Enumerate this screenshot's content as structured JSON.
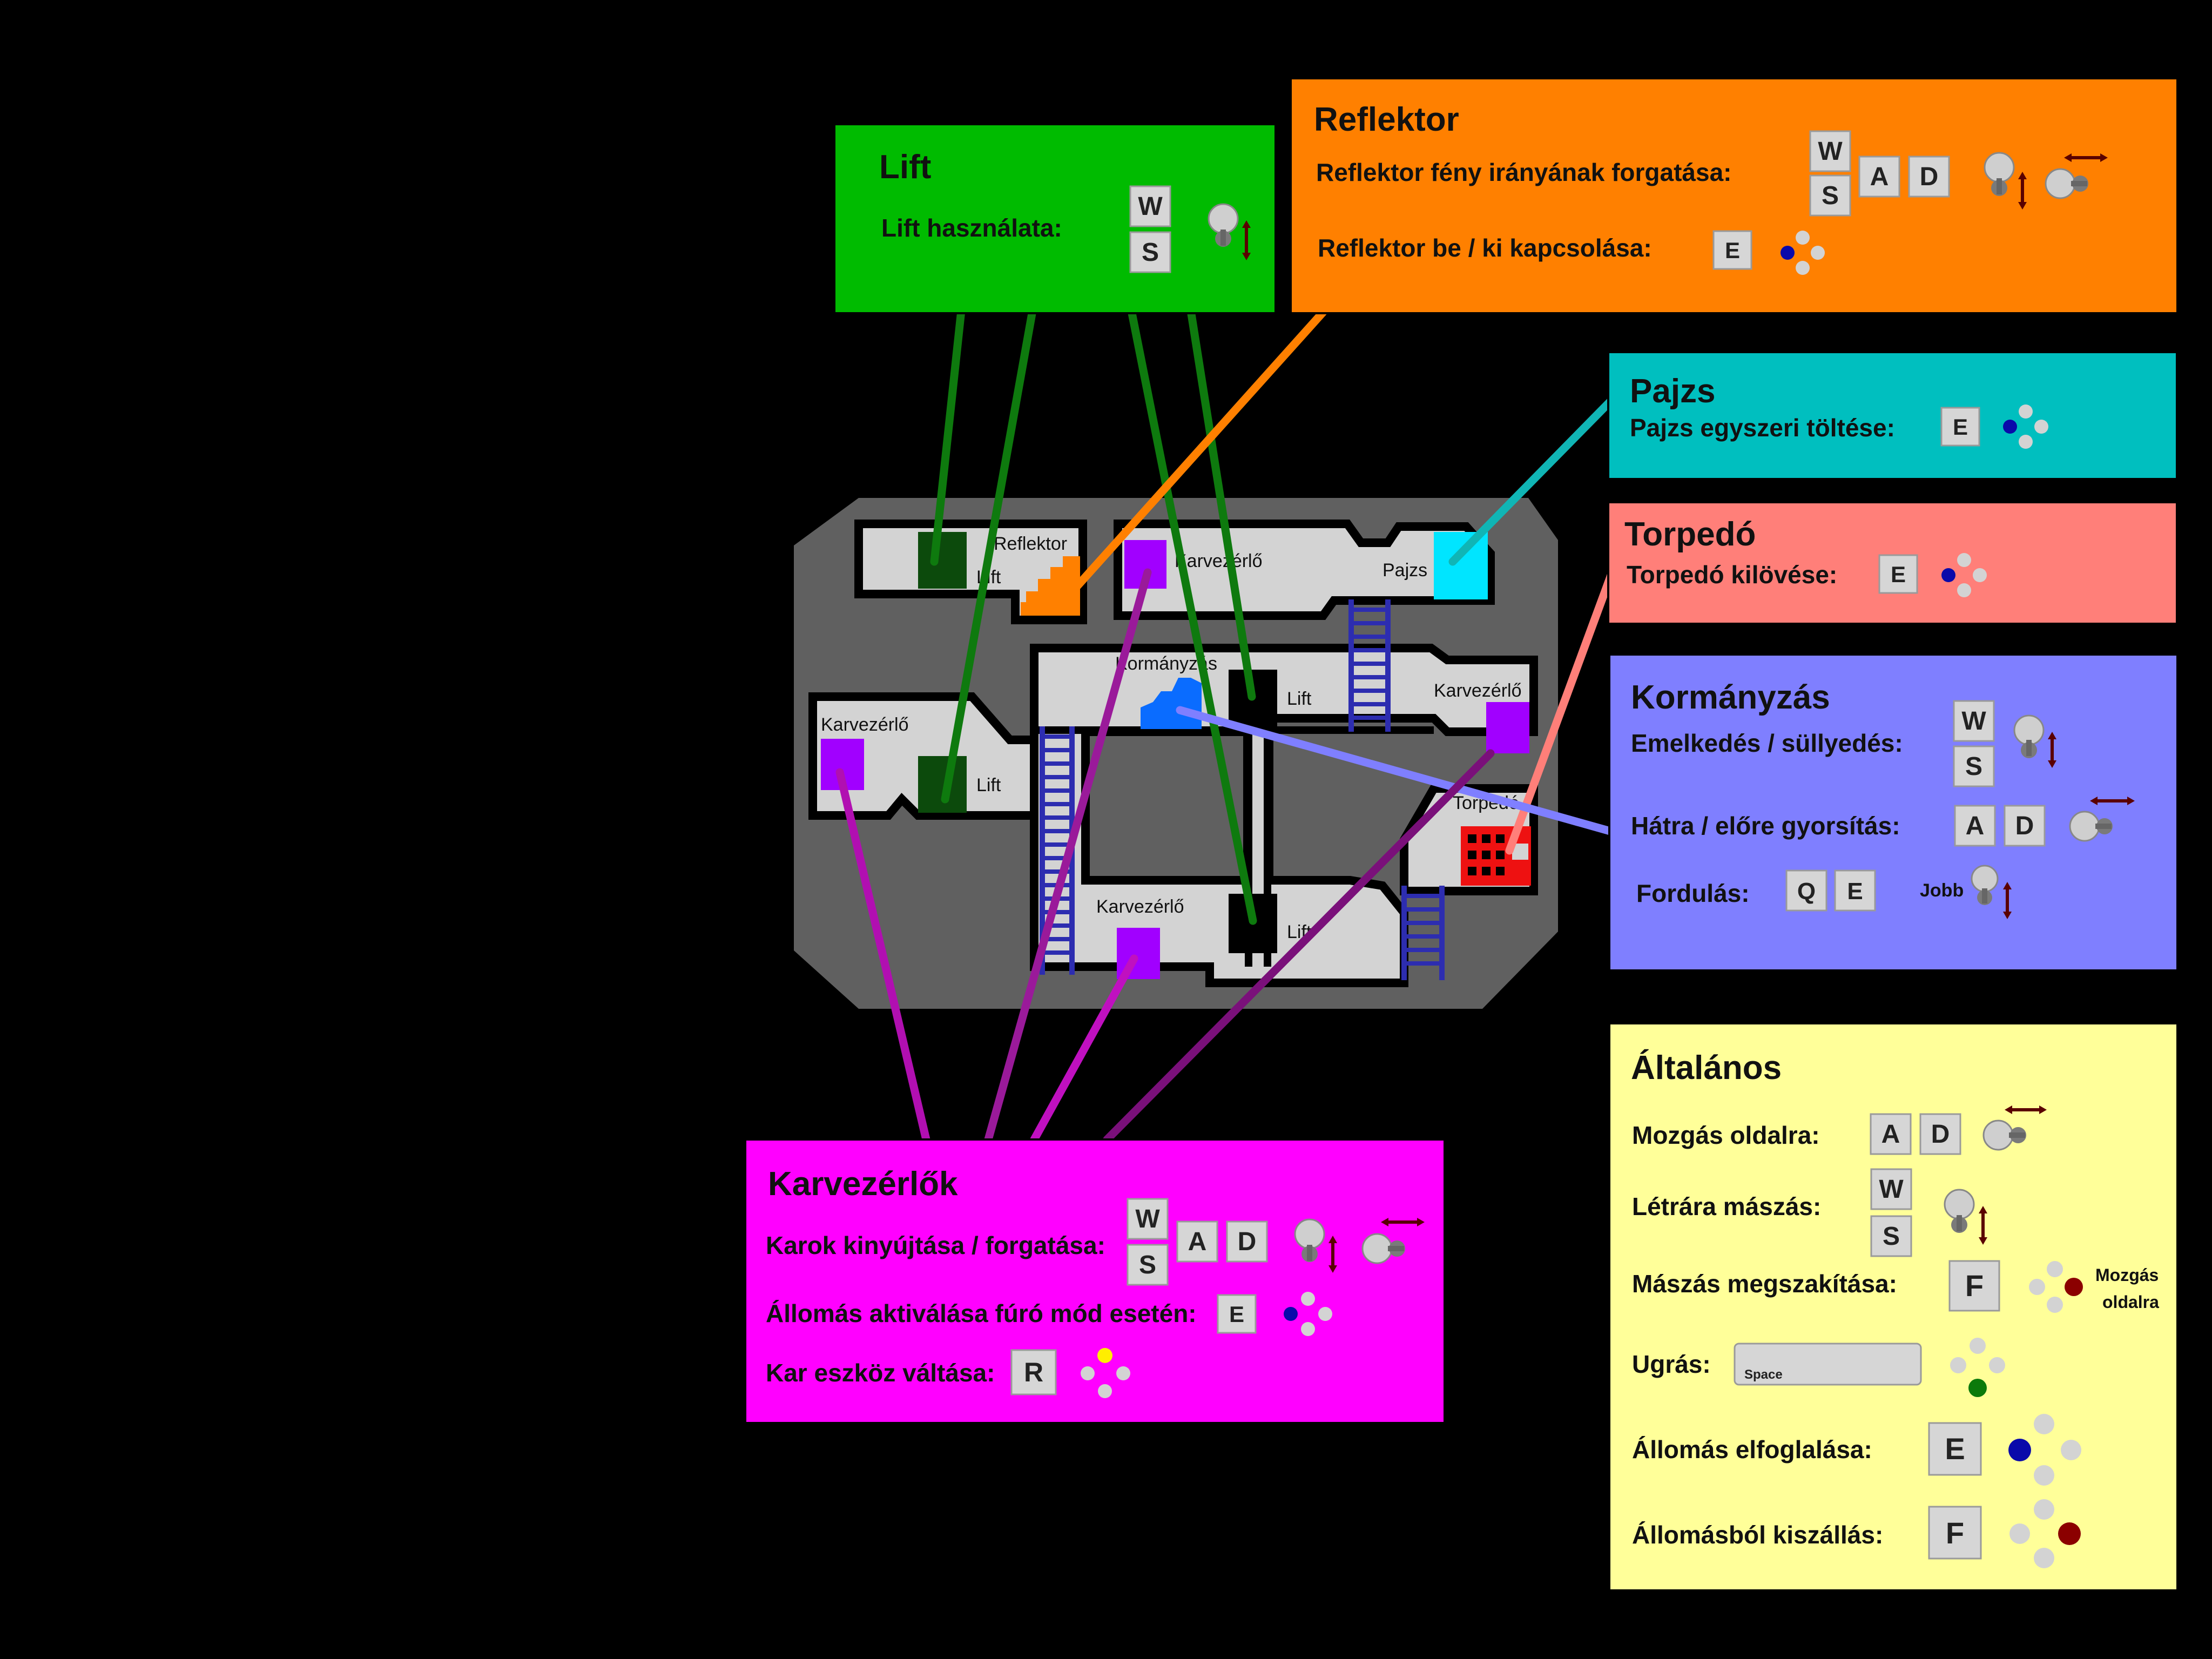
{
  "colors": {
    "background": "#000000",
    "hull": "#606060",
    "room": "#d3d3d3",
    "lift": "#00bb00",
    "lift_dark": "#0c4a0c",
    "reflector": "#ff8000",
    "shield": "#00bfbf",
    "shield_room": "#00e5ff",
    "torpedo": "#ff7f79",
    "torpedo_room": "#ee1111",
    "steering": "#7f7fff",
    "steering_room": "#0a6cff",
    "arms": "#ff00ff",
    "arms_room": "#a100ff",
    "general": "#ffff99",
    "ladder": "#2d2db0"
  },
  "map": {
    "rooms": {
      "reflector": "Reflektor",
      "lift_tl": "Lift",
      "karvez_top": "Karvezérlő",
      "pajzs": "Pajzs",
      "kormanyzas": "Kormányzás",
      "lift_mid": "Lift",
      "karvez_right": "Karvezérlő",
      "karvez_left": "Karvezérlő",
      "lift_left": "Lift",
      "torpedo": "Torpedó",
      "karvez_bottom": "Karvezérlő",
      "lift_bottom": "Lift"
    }
  },
  "panels": {
    "lift": {
      "title": "Lift",
      "row1": {
        "label": "Lift használata:",
        "keys": [
          "W",
          "S"
        ]
      }
    },
    "reflektor": {
      "title": "Reflektor",
      "row1": {
        "label": "Reflektor fény irányának forgatása:",
        "keys": [
          "W",
          "S",
          "A",
          "D"
        ]
      },
      "row2": {
        "label": "Reflektor be / ki kapcsolása:",
        "keys": [
          "E"
        ]
      }
    },
    "pajzs": {
      "title": "Pajzs",
      "row1": {
        "label": "Pajzs egyszeri töltése:",
        "keys": [
          "E"
        ]
      }
    },
    "torpedo": {
      "title": "Torpedó",
      "row1": {
        "label": "Torpedó kilövése:",
        "keys": [
          "E"
        ]
      }
    },
    "kormanyzas": {
      "title": "Kormányzás",
      "row1": {
        "label": "Emelkedés / süllyedés:",
        "keys": [
          "W",
          "S"
        ]
      },
      "row2": {
        "label": "Hátra / előre gyorsítás:",
        "keys": [
          "A",
          "D"
        ]
      },
      "row3": {
        "label": "Fordulás:",
        "keys": [
          "Q",
          "E"
        ],
        "note": "Jobb"
      }
    },
    "altalanos": {
      "title": "Általános",
      "row1": {
        "label": "Mozgás oldalra:",
        "keys": [
          "A",
          "D"
        ]
      },
      "row2": {
        "label": "Létrára mászás:",
        "keys": [
          "W",
          "S"
        ]
      },
      "row3": {
        "label": "Mászás megszakítása:",
        "keys": [
          "F"
        ],
        "note1": "Mozgás",
        "note2": "oldalra"
      },
      "row4": {
        "label": "Ugrás:",
        "keys": [
          "Space"
        ]
      },
      "row5": {
        "label": "Állomás elfoglalása:",
        "keys": [
          "E"
        ]
      },
      "row6": {
        "label": "Állomásból kiszállás:",
        "keys": [
          "F"
        ]
      }
    },
    "karvezerlok": {
      "title": "Karvezérlők",
      "row1": {
        "label": "Karok kinyújtása / forgatása:",
        "keys": [
          "W",
          "S",
          "A",
          "D"
        ]
      },
      "row2": {
        "label": "Állomás aktiválása fúró mód esetén:",
        "keys": [
          "E"
        ]
      },
      "row3": {
        "label": "Kar eszköz váltása:",
        "keys": [
          "R"
        ]
      }
    }
  },
  "gamepad": {
    "button_off": "#d3d3d3",
    "x_button": "#0a0aaa",
    "b_button": "#8b0000",
    "a_button": "#0b7a0b",
    "y_button": "#ffee00",
    "stick_light": "#cfcfcf",
    "stick_dark": "#7a7a7a"
  }
}
